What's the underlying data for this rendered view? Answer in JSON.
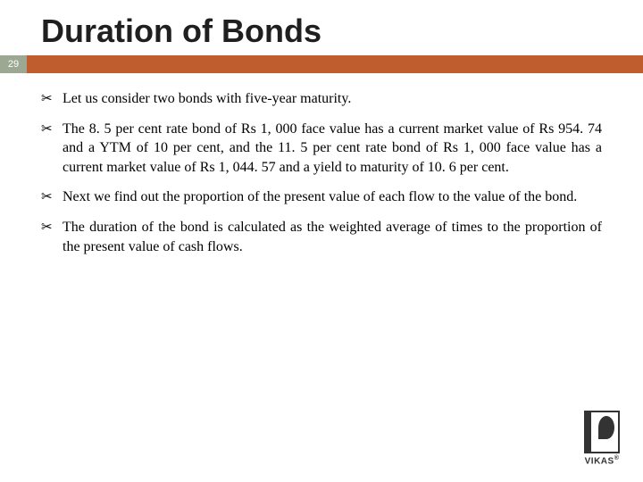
{
  "slide": {
    "title": "Duration of Bonds",
    "title_fontsize": 36,
    "title_color": "#1f1f1f",
    "page_number": "29",
    "badge_bg": "#9da892",
    "badge_text_color": "#ffffff",
    "stripe_color": "#c05d2e",
    "body_fontsize": 16,
    "body_color": "#000000",
    "bullet_glyph": "✂",
    "bullets": [
      "Let us consider two bonds with five-year maturity.",
      "The 8. 5 per cent rate bond of Rs 1, 000 face value has a current market value of Rs 954. 74 and a YTM of  10 per cent, and the 11. 5 per cent rate bond of Rs 1, 000 face value has a current market value of Rs 1, 044. 57 and a yield to maturity of 10. 6 per cent.",
      "Next we find out the proportion of the present value of each flow to the value of the bond.",
      "The duration of the bond is calculated as the weighted average of times to the proportion of the present value of cash flows."
    ]
  },
  "logo": {
    "text": "VIKAS",
    "registered": "®"
  }
}
